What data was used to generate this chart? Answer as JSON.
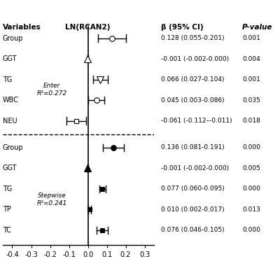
{
  "title_col1": "Variables",
  "title_col2": "LN(RCAN2)",
  "title_col3": "β (95% CI)",
  "title_col4": "P-value",
  "xlim": [
    -0.45,
    0.35
  ],
  "xticks": [
    -0.4,
    -0.3,
    -0.2,
    -0.1,
    0.0,
    0.1,
    0.2,
    0.3
  ],
  "xtick_labels": [
    "-0.4",
    "-0.3",
    "-0.2",
    "-0.1",
    "0.0",
    "0.1",
    "0.2",
    "0.3"
  ],
  "rows": [
    {
      "label": "Group",
      "beta": 0.128,
      "ci_lo": 0.055,
      "ci_hi": 0.201,
      "ci_str": "0.128 (0.055-0.201)",
      "p_str": "0.001",
      "marker": "o",
      "filled": false,
      "section": "enter"
    },
    {
      "label": "GGT",
      "beta": -0.001,
      "ci_lo": -0.002,
      "ci_hi": 0.0,
      "ci_str": "-0.001 (-0.002-0.000)",
      "p_str": "0.004",
      "marker": "^",
      "filled": false,
      "section": "enter"
    },
    {
      "label": "TG",
      "beta": 0.066,
      "ci_lo": 0.027,
      "ci_hi": 0.104,
      "ci_str": "0.066 (0.027-0.104)",
      "p_str": "0.001",
      "marker": "v",
      "filled": false,
      "section": "enter"
    },
    {
      "label": "WBC",
      "beta": 0.045,
      "ci_lo": 0.003,
      "ci_hi": 0.086,
      "ci_str": "0.045 (0.003-0.086)",
      "p_str": "0.035",
      "marker": "o",
      "filled": false,
      "section": "enter"
    },
    {
      "label": "NEU",
      "beta": -0.061,
      "ci_lo": -0.112,
      "ci_hi": -0.011,
      "ci_str": "-0.061 (-0.112–-0.011)",
      "p_str": "0.018",
      "marker": "s",
      "filled": false,
      "section": "enter"
    },
    {
      "label": "Group",
      "beta": 0.136,
      "ci_lo": 0.081,
      "ci_hi": 0.191,
      "ci_str": "0.136 (0.081-0.191)",
      "p_str": "0.000",
      "marker": "o",
      "filled": true,
      "section": "stepwise"
    },
    {
      "label": "GGT",
      "beta": -0.001,
      "ci_lo": -0.002,
      "ci_hi": 0.0,
      "ci_str": "-0.001 (-0.002-0.000)",
      "p_str": "0.005",
      "marker": "^",
      "filled": true,
      "section": "stepwise"
    },
    {
      "label": "TG",
      "beta": 0.077,
      "ci_lo": 0.06,
      "ci_hi": 0.095,
      "ci_str": "0.077 (0.060-0.095)",
      "p_str": "0.000",
      "marker": "s",
      "filled": true,
      "section": "stepwise"
    },
    {
      "label": "TP",
      "beta": 0.01,
      "ci_lo": 0.002,
      "ci_hi": 0.017,
      "ci_str": "0.010 (0.002-0.017)",
      "p_str": "0.013",
      "marker": "s",
      "filled": true,
      "section": "stepwise"
    },
    {
      "label": "TC",
      "beta": 0.076,
      "ci_lo": 0.046,
      "ci_hi": 0.105,
      "ci_str": "0.076 (0.046-0.105)",
      "p_str": "0.000",
      "marker": "s",
      "filled": true,
      "section": "stepwise"
    }
  ],
  "dashed_line_after": 4,
  "enter_label": "Enter\nR²=0.272",
  "stepwise_label": "Stepwise\nR²=0.241"
}
